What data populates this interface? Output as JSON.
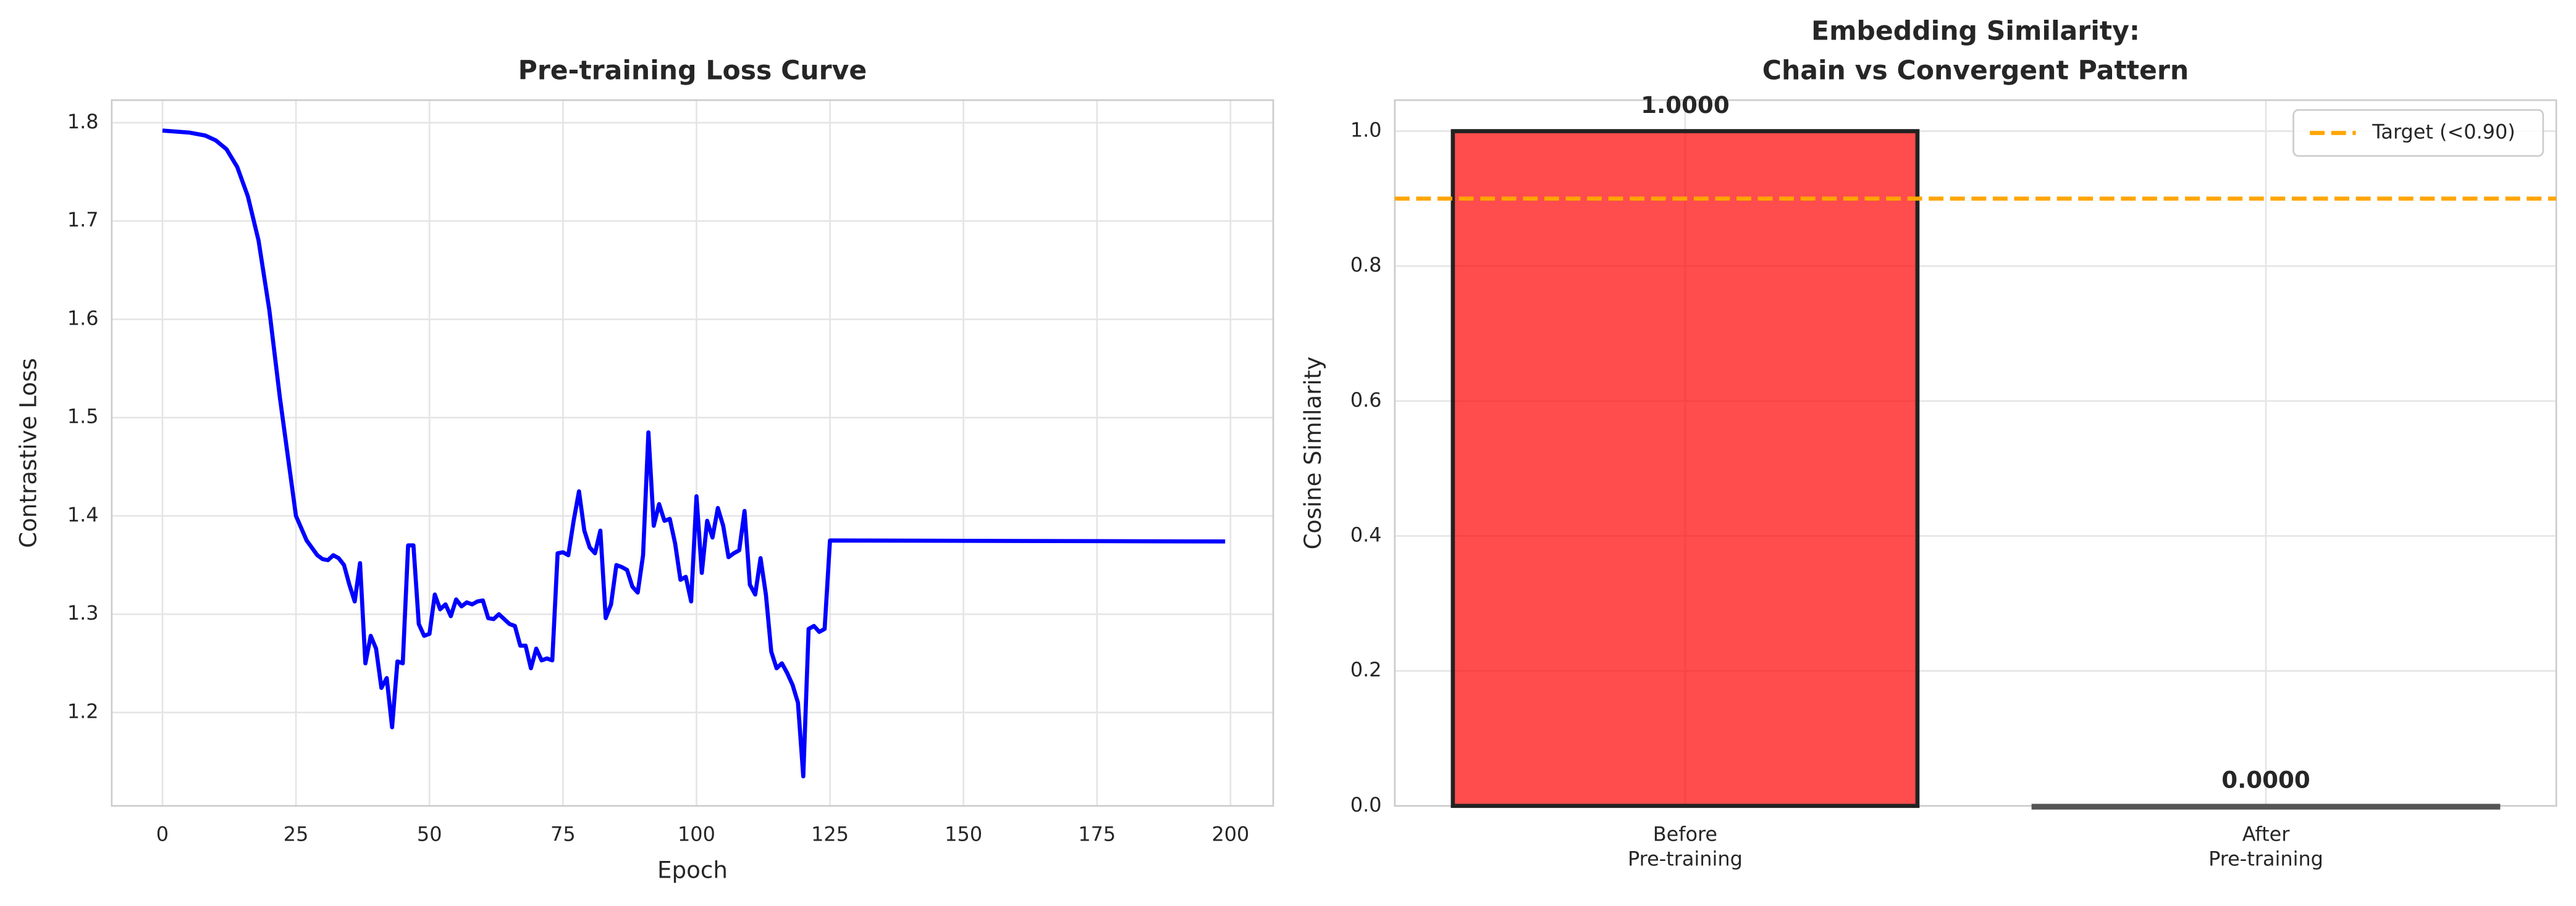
{
  "chart_data": [
    {
      "type": "line",
      "title": "Pre-training Loss Curve",
      "xlabel": "Epoch",
      "ylabel": "Contrastive Loss",
      "x": [
        0,
        5,
        8,
        10,
        12,
        14,
        16,
        18,
        20,
        22,
        24,
        25,
        27,
        29,
        30,
        31,
        32,
        33,
        34,
        35,
        36,
        37,
        38,
        39,
        40,
        41,
        42,
        43,
        44,
        45,
        46,
        47,
        48,
        49,
        50,
        51,
        52,
        53,
        54,
        55,
        56,
        57,
        58,
        59,
        60,
        61,
        62,
        63,
        64,
        65,
        66,
        67,
        68,
        69,
        70,
        71,
        72,
        73,
        74,
        75,
        76,
        77,
        78,
        79,
        80,
        81,
        82,
        83,
        84,
        85,
        86,
        87,
        88,
        89,
        90,
        91,
        92,
        93,
        94,
        95,
        96,
        97,
        98,
        99,
        100,
        101,
        102,
        103,
        104,
        105,
        106,
        107,
        108,
        109,
        110,
        111,
        112,
        113,
        114,
        115,
        116,
        117,
        118,
        119,
        120,
        121,
        122,
        123,
        124,
        125,
        199
      ],
      "series": [
        {
          "name": "Loss",
          "color": "#0000ff",
          "values": [
            1.792,
            1.79,
            1.787,
            1.782,
            1.773,
            1.755,
            1.725,
            1.68,
            1.61,
            1.52,
            1.44,
            1.4,
            1.375,
            1.36,
            1.356,
            1.355,
            1.36,
            1.357,
            1.35,
            1.33,
            1.313,
            1.352,
            1.25,
            1.278,
            1.265,
            1.225,
            1.235,
            1.185,
            1.252,
            1.25,
            1.37,
            1.37,
            1.29,
            1.278,
            1.28,
            1.32,
            1.305,
            1.31,
            1.298,
            1.315,
            1.308,
            1.312,
            1.31,
            1.313,
            1.314,
            1.296,
            1.295,
            1.3,
            1.295,
            1.29,
            1.288,
            1.268,
            1.268,
            1.245,
            1.265,
            1.253,
            1.255,
            1.253,
            1.362,
            1.363,
            1.36,
            1.395,
            1.425,
            1.385,
            1.368,
            1.362,
            1.385,
            1.296,
            1.31,
            1.35,
            1.348,
            1.345,
            1.328,
            1.322,
            1.36,
            1.485,
            1.39,
            1.412,
            1.395,
            1.397,
            1.372,
            1.335,
            1.338,
            1.313,
            1.42,
            1.342,
            1.395,
            1.378,
            1.408,
            1.39,
            1.358,
            1.362,
            1.365,
            1.405,
            1.33,
            1.32,
            1.357,
            1.32,
            1.262,
            1.245,
            1.25,
            1.24,
            1.228,
            1.21,
            1.135,
            1.285,
            1.288,
            1.282,
            1.285,
            1.375,
            1.374
          ]
        }
      ],
      "xlim": [
        -9.5,
        208
      ],
      "xticks": [
        0,
        25,
        50,
        75,
        100,
        125,
        150,
        175,
        200
      ],
      "ylim": [
        1.105,
        1.823
      ],
      "yticks": [
        1.2,
        1.3,
        1.4,
        1.5,
        1.6,
        1.7,
        1.8
      ],
      "grid": true
    },
    {
      "type": "bar",
      "title": [
        "Embedding Similarity:",
        "Chain vs Convergent Pattern"
      ],
      "ylabel": "Cosine Similarity",
      "categories": [
        [
          "Before",
          "Pre-training"
        ],
        [
          "After",
          "Pre-training"
        ]
      ],
      "values": [
        1.0,
        0.0
      ],
      "value_labels": [
        "1.0000",
        "0.0000"
      ],
      "colors": [
        "#ff0000",
        "#808080"
      ],
      "edgecolors": [
        "#222222",
        "#555555"
      ],
      "ylim": [
        0,
        1.046
      ],
      "yticks": [
        {
          "value": 0,
          "label": "0.0"
        },
        0.2,
        0.4,
        0.6,
        0.8,
        {
          "value": 1,
          "label": "1.0"
        }
      ],
      "hlines": [
        {
          "value": 0.9,
          "name": "Target (<0.90)",
          "color": "#ffa500"
        }
      ],
      "legend": "upper-right",
      "grid": true
    }
  ]
}
